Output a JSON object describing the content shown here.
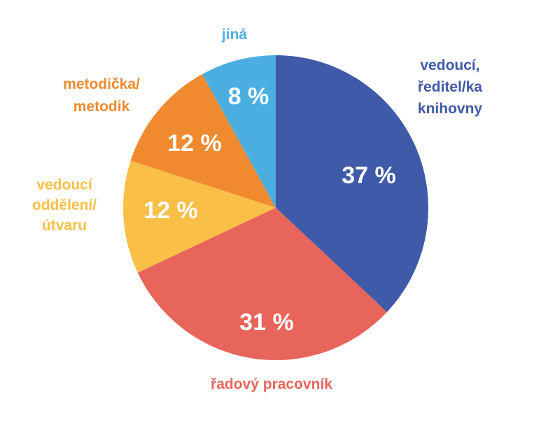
{
  "chart_data": {
    "type": "pie",
    "slices": [
      {
        "label_lines": [
          "vedoucí,",
          "ředitel/ka",
          "knihovny"
        ],
        "value": 37,
        "value_label": "37 %",
        "color": "#3F5AA8"
      },
      {
        "label_lines": [
          "řadový pracovník"
        ],
        "value": 31,
        "value_label": "31 %",
        "color": "#E8655B"
      },
      {
        "label_lines": [
          "vedoucí",
          "oddělení/",
          "útvaru"
        ],
        "value": 12,
        "value_label": "12 %",
        "color": "#F9BF47"
      },
      {
        "label_lines": [
          "metodička/",
          "metodik"
        ],
        "value": 12,
        "value_label": "12 %",
        "color": "#EF8A2F"
      },
      {
        "label_lines": [
          "jiná"
        ],
        "value": 8,
        "value_label": "8 %",
        "color": "#4AAFE0"
      }
    ]
  }
}
